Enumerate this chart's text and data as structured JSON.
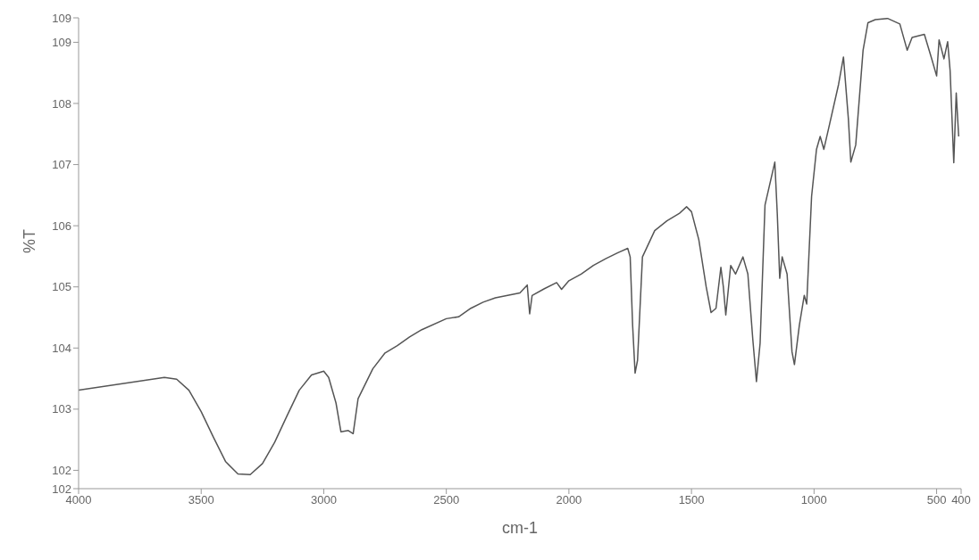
{
  "chart_data": {
    "type": "line",
    "xlabel": "cm-1",
    "ylabel": "%T",
    "grid": false,
    "legend": false,
    "marker": "none",
    "line_style": "solid",
    "xlim": [
      4000,
      400
    ],
    "xticks": [
      4000,
      3500,
      3000,
      2500,
      2000,
      1500,
      1000,
      500,
      400
    ],
    "ylim": [
      101.7,
      109.4
    ],
    "yticks": [
      {
        "value": 101.7,
        "label": "102"
      },
      102,
      103,
      104,
      105,
      106,
      107,
      108,
      109,
      {
        "value": 109.4,
        "label": "109"
      }
    ],
    "x": [
      4000,
      3650,
      3600,
      3550,
      3500,
      3450,
      3400,
      3350,
      3300,
      3250,
      3200,
      3150,
      3100,
      3050,
      3000,
      2980,
      2950,
      2930,
      2900,
      2880,
      2860,
      2800,
      2750,
      2700,
      2650,
      2600,
      2500,
      2450,
      2400,
      2350,
      2300,
      2200,
      2170,
      2160,
      2150,
      2100,
      2050,
      2030,
      2000,
      1950,
      1900,
      1850,
      1800,
      1760,
      1750,
      1740,
      1730,
      1720,
      1700,
      1650,
      1600,
      1550,
      1520,
      1500,
      1470,
      1440,
      1420,
      1400,
      1380,
      1370,
      1360,
      1340,
      1320,
      1290,
      1270,
      1250,
      1235,
      1220,
      1200,
      1160,
      1150,
      1140,
      1130,
      1110,
      1090,
      1080,
      1060,
      1040,
      1030,
      1010,
      990,
      975,
      960,
      940,
      900,
      880,
      860,
      850,
      830,
      800,
      780,
      750,
      700,
      650,
      620,
      600,
      550,
      520,
      500,
      490,
      470,
      455,
      445,
      430,
      420,
      410
    ],
    "series": [
      {
        "color": "#555555",
        "values": [
          103.31,
          103.52,
          103.49,
          103.31,
          102.96,
          102.54,
          102.14,
          101.94,
          101.93,
          102.11,
          102.46,
          102.89,
          103.31,
          103.56,
          103.62,
          103.52,
          103.1,
          102.63,
          102.65,
          102.6,
          103.17,
          103.66,
          103.92,
          104.04,
          104.18,
          104.3,
          104.48,
          104.51,
          104.65,
          104.75,
          104.82,
          104.9,
          105.03,
          104.56,
          104.86,
          104.97,
          105.07,
          104.96,
          105.1,
          105.21,
          105.35,
          105.46,
          105.56,
          105.63,
          105.49,
          104.37,
          103.59,
          103.8,
          105.49,
          105.92,
          106.08,
          106.2,
          106.31,
          106.23,
          105.77,
          105.0,
          104.58,
          104.65,
          105.32,
          105.0,
          104.54,
          105.35,
          105.21,
          105.49,
          105.21,
          104.15,
          103.45,
          104.08,
          106.34,
          107.04,
          106.2,
          105.14,
          105.49,
          105.21,
          103.94,
          103.73,
          104.37,
          104.86,
          104.72,
          106.48,
          107.25,
          107.46,
          107.25,
          107.6,
          108.31,
          108.76,
          107.75,
          107.04,
          107.32,
          108.87,
          109.32,
          109.37,
          109.39,
          109.3,
          108.87,
          109.08,
          109.13,
          108.73,
          108.45,
          109.04,
          108.73,
          109.01,
          108.54,
          107.03,
          108.17,
          107.46
        ]
      }
    ]
  }
}
